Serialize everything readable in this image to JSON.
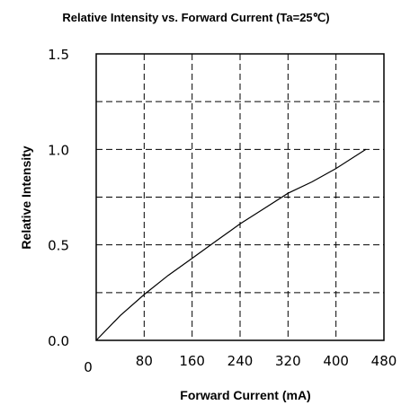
{
  "chart_data": {
    "type": "line",
    "title": "Relative Intensity vs. Forward Current (Ta=25℃)",
    "xlabel": "Forward Current (mA)",
    "ylabel": "Relative Intensity",
    "xlim": [
      0,
      480
    ],
    "ylim": [
      0.0,
      1.5
    ],
    "x_ticks": [
      "0",
      "80",
      "160",
      "240",
      "320",
      "400",
      "480"
    ],
    "y_ticks": [
      "0.0",
      "0.5",
      "1.0",
      "1.5"
    ],
    "grid": true,
    "legend": "none",
    "series": [
      {
        "x": [
          0,
          40,
          80,
          120,
          160,
          200,
          240,
          280,
          320,
          360,
          400,
          450
        ],
        "y": [
          0.0,
          0.13,
          0.24,
          0.34,
          0.43,
          0.52,
          0.61,
          0.69,
          0.77,
          0.83,
          0.9,
          1.0
        ]
      }
    ]
  },
  "colors": {
    "line": "#000000",
    "grid": "#000000",
    "background": "#ffffff"
  }
}
